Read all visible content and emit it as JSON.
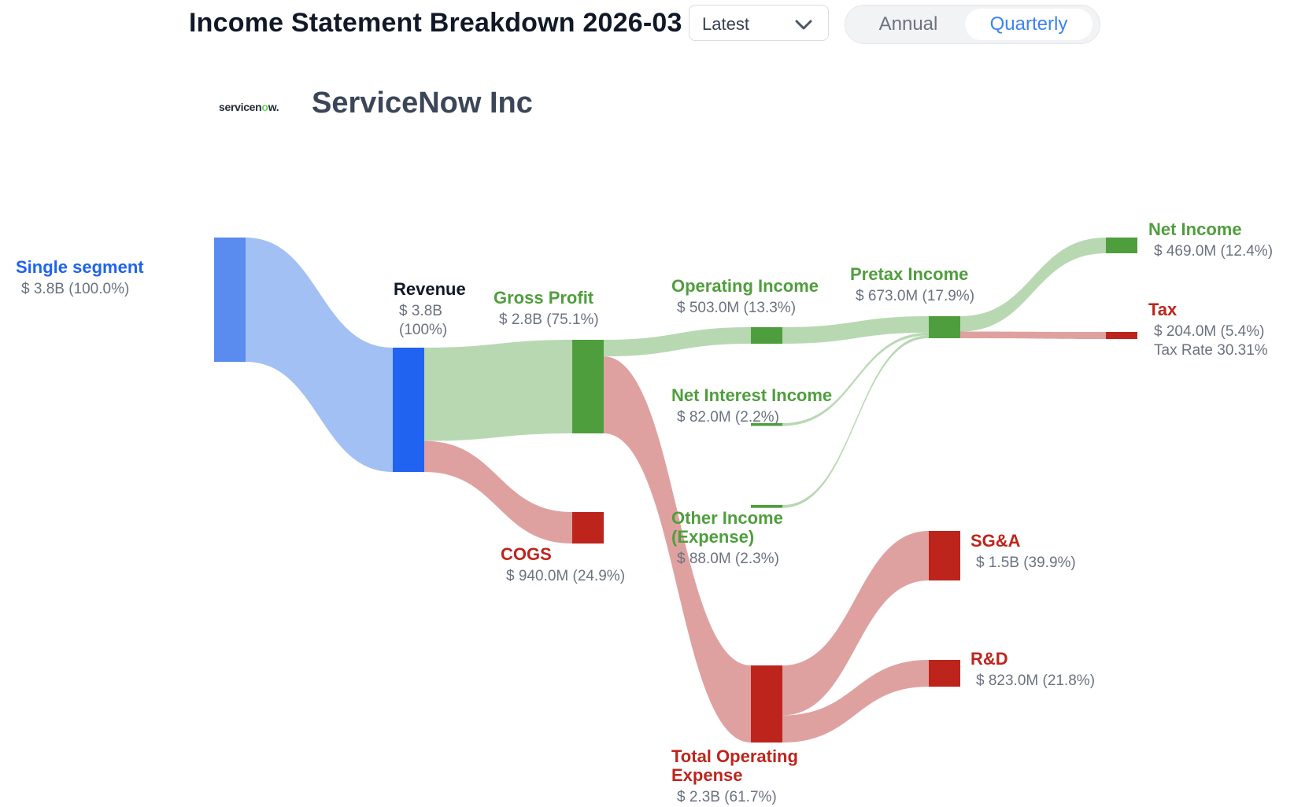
{
  "header": {
    "title": "Income Statement Breakdown 2026-03",
    "period_select": "Latest",
    "toggle": {
      "annual": "Annual",
      "quarterly": "Quarterly",
      "active": "Quarterly"
    }
  },
  "company": {
    "name": "ServiceNow Inc",
    "logo_text": "servicenow."
  },
  "colors": {
    "blue": "#1f63f0",
    "blue_light": "#5a8bef",
    "green": "#4f9e3d",
    "red": "#bd251c",
    "link_blue": "#a3c0f4",
    "link_green": "#b8d8b2",
    "link_red": "#dfa1a0",
    "value_text": "#6b7280"
  },
  "chart_data": {
    "type": "sankey",
    "nodes": [
      {
        "id": "segment",
        "label": "Single segment",
        "value_text": "$ 3.8B (100.0%)",
        "value_billions": 3.776,
        "color": "blue_light"
      },
      {
        "id": "revenue",
        "label": "Revenue",
        "value_text": "$ 3.8B\n(100%)",
        "value_billions": 3.776,
        "color": "blue"
      },
      {
        "id": "gross_profit",
        "label": "Gross Profit",
        "value_text": "$ 2.8B (75.1%)",
        "value_billions": 2.836,
        "color": "green"
      },
      {
        "id": "cogs",
        "label": "COGS",
        "value_text": "$ 940.0M (24.9%)",
        "value_billions": 0.94,
        "color": "red"
      },
      {
        "id": "operating_income",
        "label": "Operating Income",
        "value_text": "$ 503.0M (13.3%)",
        "value_billions": 0.503,
        "color": "green"
      },
      {
        "id": "total_opex",
        "label": "Total Operating Expense",
        "value_text": "$ 2.3B (61.7%)",
        "value_billions": 2.333,
        "color": "red"
      },
      {
        "id": "net_interest",
        "label": "Net Interest Income",
        "value_text": "$ 82.0M (2.2%)",
        "value_billions": 0.082,
        "color": "green"
      },
      {
        "id": "other_income",
        "label": "Other Income (Expense)",
        "value_text": "$ 88.0M (2.3%)",
        "value_billions": 0.088,
        "color": "green"
      },
      {
        "id": "pretax_income",
        "label": "Pretax Income",
        "value_text": "$ 673.0M (17.9%)",
        "value_billions": 0.673,
        "color": "green"
      },
      {
        "id": "net_income",
        "label": "Net Income",
        "value_text": "$ 469.0M (12.4%)",
        "value_billions": 0.469,
        "color": "green"
      },
      {
        "id": "tax",
        "label": "Tax",
        "value_text": "$ 204.0M (5.4%)\nTax Rate 30.31%",
        "value_billions": 0.204,
        "color": "red"
      },
      {
        "id": "sga",
        "label": "SG&A",
        "value_text": "$ 1.5B (39.9%)",
        "value_billions": 1.51,
        "color": "red"
      },
      {
        "id": "rnd",
        "label": "R&D",
        "value_text": "$ 823.0M (21.8%)",
        "value_billions": 0.823,
        "color": "red"
      }
    ],
    "links": [
      {
        "source": "segment",
        "target": "revenue",
        "value_billions": 3.776
      },
      {
        "source": "revenue",
        "target": "gross_profit",
        "value_billions": 2.836
      },
      {
        "source": "revenue",
        "target": "cogs",
        "value_billions": 0.94
      },
      {
        "source": "gross_profit",
        "target": "operating_income",
        "value_billions": 0.503
      },
      {
        "source": "gross_profit",
        "target": "total_opex",
        "value_billions": 2.333
      },
      {
        "source": "operating_income",
        "target": "pretax_income",
        "value_billions": 0.503
      },
      {
        "source": "net_interest",
        "target": "pretax_income",
        "value_billions": 0.082
      },
      {
        "source": "other_income",
        "target": "pretax_income",
        "value_billions": 0.088
      },
      {
        "source": "pretax_income",
        "target": "net_income",
        "value_billions": 0.469
      },
      {
        "source": "pretax_income",
        "target": "tax",
        "value_billions": 0.204
      },
      {
        "source": "total_opex",
        "target": "sga",
        "value_billions": 1.51
      },
      {
        "source": "total_opex",
        "target": "rnd",
        "value_billions": 0.823
      }
    ]
  }
}
